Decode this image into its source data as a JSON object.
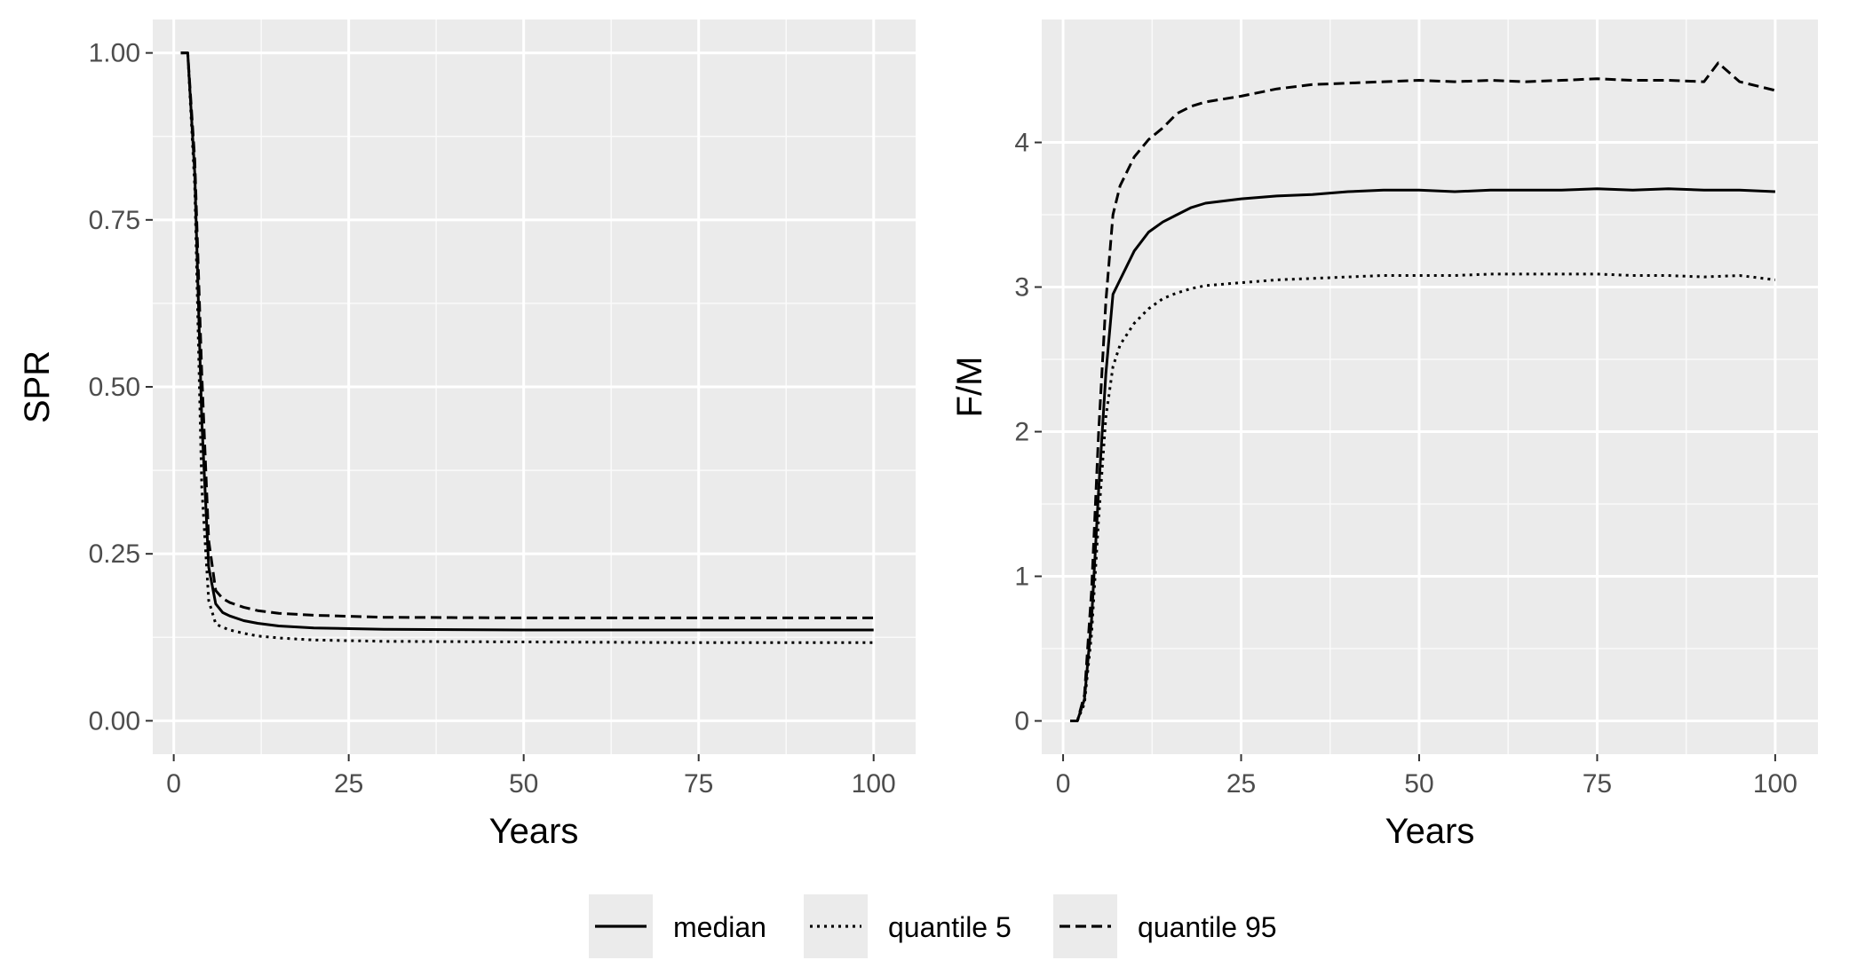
{
  "chart_data": [
    {
      "type": "line",
      "xlabel": "Years",
      "ylabel": "SPR",
      "xlim": [
        -3,
        106
      ],
      "ylim": [
        -0.05,
        1.05
      ],
      "xticks": [
        0,
        25,
        50,
        75,
        100
      ],
      "xtick_labels": [
        "0",
        "25",
        "50",
        "75",
        "100"
      ],
      "yticks": [
        0,
        0.25,
        0.5,
        0.75,
        1.0
      ],
      "ytick_labels": [
        "0.00",
        "0.25",
        "0.50",
        "0.75",
        "1.00"
      ],
      "grid": true,
      "series": [
        {
          "name": "median",
          "style": "solid",
          "points": [
            [
              1,
              1.0
            ],
            [
              2,
              1.0
            ],
            [
              3,
              0.82
            ],
            [
              4,
              0.45
            ],
            [
              5,
              0.23
            ],
            [
              6,
              0.175
            ],
            [
              7,
              0.162
            ],
            [
              8,
              0.157
            ],
            [
              10,
              0.15
            ],
            [
              12,
              0.146
            ],
            [
              15,
              0.142
            ],
            [
              20,
              0.139
            ],
            [
              30,
              0.137
            ],
            [
              50,
              0.136
            ],
            [
              75,
              0.136
            ],
            [
              100,
              0.136
            ]
          ]
        },
        {
          "name": "quantile 5",
          "style": "dotted",
          "points": [
            [
              1,
              1.0
            ],
            [
              2,
              1.0
            ],
            [
              3,
              0.8
            ],
            [
              4,
              0.35
            ],
            [
              5,
              0.18
            ],
            [
              6,
              0.145
            ],
            [
              7,
              0.14
            ],
            [
              8,
              0.136
            ],
            [
              10,
              0.131
            ],
            [
              12,
              0.127
            ],
            [
              15,
              0.124
            ],
            [
              20,
              0.121
            ],
            [
              30,
              0.119
            ],
            [
              50,
              0.118
            ],
            [
              75,
              0.117
            ],
            [
              100,
              0.117
            ]
          ]
        },
        {
          "name": "quantile 95",
          "style": "dashed",
          "points": [
            [
              1,
              1.0
            ],
            [
              2,
              1.0
            ],
            [
              3,
              0.84
            ],
            [
              4,
              0.52
            ],
            [
              5,
              0.27
            ],
            [
              6,
              0.195
            ],
            [
              7,
              0.183
            ],
            [
              8,
              0.177
            ],
            [
              10,
              0.17
            ],
            [
              12,
              0.165
            ],
            [
              15,
              0.161
            ],
            [
              20,
              0.158
            ],
            [
              30,
              0.155
            ],
            [
              50,
              0.154
            ],
            [
              75,
              0.154
            ],
            [
              100,
              0.154
            ]
          ]
        }
      ]
    },
    {
      "type": "line",
      "xlabel": "Years",
      "ylabel": "F/M",
      "xlim": [
        -3,
        106
      ],
      "ylim": [
        -0.23,
        4.85
      ],
      "xticks": [
        0,
        25,
        50,
        75,
        100
      ],
      "xtick_labels": [
        "0",
        "25",
        "50",
        "75",
        "100"
      ],
      "yticks": [
        0,
        1,
        2,
        3,
        4
      ],
      "ytick_labels": [
        "0",
        "1",
        "2",
        "3",
        "4"
      ],
      "grid": true,
      "series": [
        {
          "name": "median",
          "style": "solid",
          "points": [
            [
              1,
              0.0
            ],
            [
              2,
              0.0
            ],
            [
              3,
              0.15
            ],
            [
              4,
              0.7
            ],
            [
              5,
              1.6
            ],
            [
              6,
              2.4
            ],
            [
              7,
              2.95
            ],
            [
              8,
              3.05
            ],
            [
              10,
              3.25
            ],
            [
              12,
              3.38
            ],
            [
              14,
              3.45
            ],
            [
              16,
              3.5
            ],
            [
              18,
              3.55
            ],
            [
              20,
              3.58
            ],
            [
              25,
              3.61
            ],
            [
              30,
              3.63
            ],
            [
              35,
              3.64
            ],
            [
              40,
              3.66
            ],
            [
              45,
              3.67
            ],
            [
              50,
              3.67
            ],
            [
              55,
              3.66
            ],
            [
              60,
              3.67
            ],
            [
              65,
              3.67
            ],
            [
              70,
              3.67
            ],
            [
              75,
              3.68
            ],
            [
              80,
              3.67
            ],
            [
              85,
              3.68
            ],
            [
              90,
              3.67
            ],
            [
              95,
              3.67
            ],
            [
              100,
              3.66
            ]
          ]
        },
        {
          "name": "quantile 5",
          "style": "dotted",
          "points": [
            [
              1,
              0.0
            ],
            [
              2,
              0.0
            ],
            [
              3,
              0.12
            ],
            [
              4,
              0.6
            ],
            [
              5,
              1.4
            ],
            [
              6,
              2.1
            ],
            [
              7,
              2.45
            ],
            [
              8,
              2.6
            ],
            [
              10,
              2.75
            ],
            [
              12,
              2.85
            ],
            [
              14,
              2.92
            ],
            [
              16,
              2.96
            ],
            [
              18,
              2.99
            ],
            [
              20,
              3.01
            ],
            [
              25,
              3.03
            ],
            [
              30,
              3.05
            ],
            [
              35,
              3.06
            ],
            [
              40,
              3.07
            ],
            [
              45,
              3.08
            ],
            [
              50,
              3.08
            ],
            [
              55,
              3.08
            ],
            [
              60,
              3.09
            ],
            [
              65,
              3.09
            ],
            [
              70,
              3.09
            ],
            [
              75,
              3.09
            ],
            [
              80,
              3.08
            ],
            [
              85,
              3.08
            ],
            [
              90,
              3.07
            ],
            [
              95,
              3.08
            ],
            [
              100,
              3.05
            ]
          ]
        },
        {
          "name": "quantile 95",
          "style": "dashed",
          "points": [
            [
              1,
              0.0
            ],
            [
              2,
              0.0
            ],
            [
              3,
              0.18
            ],
            [
              4,
              0.9
            ],
            [
              5,
              2.0
            ],
            [
              6,
              2.9
            ],
            [
              7,
              3.5
            ],
            [
              8,
              3.7
            ],
            [
              10,
              3.9
            ],
            [
              12,
              4.02
            ],
            [
              14,
              4.1
            ],
            [
              16,
              4.2
            ],
            [
              18,
              4.25
            ],
            [
              20,
              4.28
            ],
            [
              25,
              4.32
            ],
            [
              30,
              4.37
            ],
            [
              35,
              4.4
            ],
            [
              40,
              4.41
            ],
            [
              45,
              4.42
            ],
            [
              50,
              4.43
            ],
            [
              55,
              4.42
            ],
            [
              60,
              4.43
            ],
            [
              65,
              4.42
            ],
            [
              70,
              4.43
            ],
            [
              75,
              4.44
            ],
            [
              80,
              4.43
            ],
            [
              85,
              4.43
            ],
            [
              90,
              4.42
            ],
            [
              92,
              4.55
            ],
            [
              95,
              4.42
            ],
            [
              100,
              4.36
            ]
          ]
        }
      ]
    }
  ],
  "legend": {
    "position": "bottom",
    "items": [
      {
        "name": "median",
        "label": "median",
        "style": "solid"
      },
      {
        "name": "quantile 5",
        "label": "quantile 5",
        "style": "dotted"
      },
      {
        "name": "quantile 95",
        "label": "quantile 95",
        "style": "dashed"
      }
    ]
  }
}
